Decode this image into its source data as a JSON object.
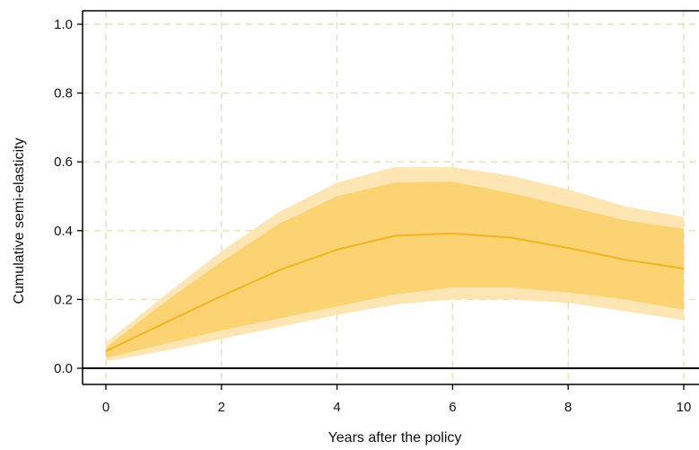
{
  "chart_data": {
    "type": "line",
    "title": "",
    "xlabel": "Years after the policy",
    "ylabel": "Cumulative semi-elasticity",
    "x": [
      0,
      1,
      2,
      3,
      4,
      5,
      6,
      7,
      8,
      9,
      10
    ],
    "xlim": [
      -0.4,
      10.3
    ],
    "ylim": [
      -0.04,
      1.04
    ],
    "xticks": [
      0,
      2,
      4,
      6,
      8,
      10
    ],
    "yticks": [
      0.0,
      0.2,
      0.4,
      0.6,
      0.8,
      1.0
    ],
    "xtick_labels": [
      "0",
      "2",
      "4",
      "6",
      "8",
      "10"
    ],
    "ytick_labels": [
      "0.0",
      "0.2",
      "0.4",
      "0.6",
      "0.8",
      "1.0"
    ],
    "grid": true,
    "reference_line_y": 0,
    "series": [
      {
        "role": "point_estimate",
        "values": [
          0.05,
          0.13,
          0.21,
          0.285,
          0.345,
          0.385,
          0.392,
          0.38,
          0.35,
          0.315,
          0.29
        ]
      },
      {
        "role": "inner_band",
        "lower": [
          0.03,
          0.07,
          0.11,
          0.145,
          0.18,
          0.215,
          0.235,
          0.235,
          0.22,
          0.2,
          0.17
        ],
        "upper": [
          0.06,
          0.19,
          0.31,
          0.42,
          0.5,
          0.54,
          0.542,
          0.51,
          0.47,
          0.43,
          0.405
        ]
      },
      {
        "role": "outer_band",
        "lower": [
          0.02,
          0.05,
          0.085,
          0.12,
          0.155,
          0.185,
          0.2,
          0.2,
          0.19,
          0.165,
          0.14
        ],
        "upper": [
          0.075,
          0.21,
          0.34,
          0.455,
          0.54,
          0.585,
          0.585,
          0.56,
          0.52,
          0.47,
          0.44
        ]
      }
    ],
    "colors": {
      "line": "#f2b51e",
      "inner_band": "#fbd373",
      "outer_band": "#fde6b4",
      "grid": "#e4dfb6",
      "axis": "#000000"
    }
  }
}
